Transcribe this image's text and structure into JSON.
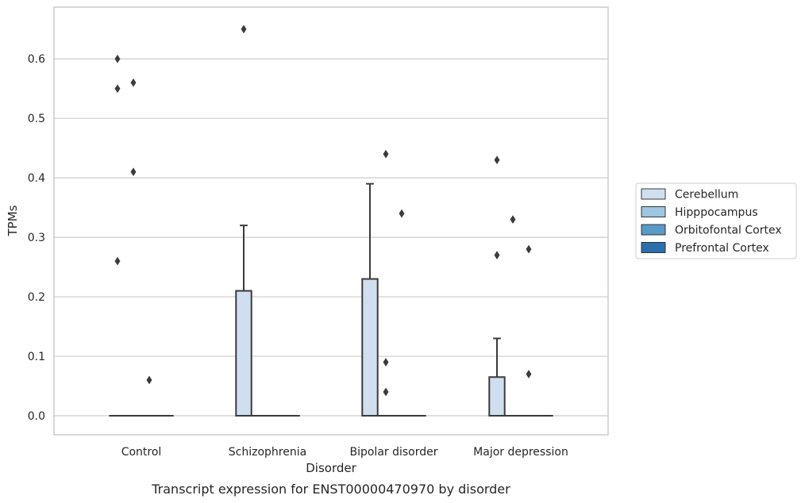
{
  "chart_data": {
    "type": "box",
    "caption": "Transcript expression for ENST00000470970 by disorder",
    "xlabel": "Disorder",
    "ylabel": "TPMs",
    "ylim": [
      -0.032,
      0.687
    ],
    "yticks": [
      0.0,
      0.1,
      0.2,
      0.3,
      0.4,
      0.5,
      0.6
    ],
    "ytick_labels": [
      "0.0",
      "0.1",
      "0.2",
      "0.3",
      "0.4",
      "0.5",
      "0.6"
    ],
    "categories": [
      "Control",
      "Schizophrenia",
      "Bipolar disorder",
      "Major depression"
    ],
    "grid": true,
    "legend_position": "right",
    "series": [
      {
        "name": "Cerebellum",
        "color": "#cfdff0",
        "boxes": [
          {
            "q1": 0,
            "median": 0,
            "q3": 0,
            "whisker_low": 0,
            "whisker_high": 0,
            "outliers": [
              0.26,
              0.55,
              0.6
            ]
          },
          {
            "q1": 0,
            "median": 0,
            "q3": 0.21,
            "whisker_low": 0,
            "whisker_high": 0.32,
            "outliers": [
              0.65
            ]
          },
          {
            "q1": 0,
            "median": 0,
            "q3": 0.23,
            "whisker_low": 0,
            "whisker_high": 0.39,
            "outliers": []
          },
          {
            "q1": 0,
            "median": 0,
            "q3": 0.065,
            "whisker_low": 0,
            "whisker_high": 0.13,
            "outliers": [
              0.27,
              0.43
            ]
          }
        ]
      },
      {
        "name": "Hipppocampus",
        "color": "#9dc6e0",
        "boxes": [
          {
            "q1": 0,
            "median": 0,
            "q3": 0,
            "whisker_low": 0,
            "whisker_high": 0,
            "outliers": [
              0.41,
              0.56
            ]
          },
          {
            "q1": 0,
            "median": 0,
            "q3": 0,
            "whisker_low": 0,
            "whisker_high": 0,
            "outliers": []
          },
          {
            "q1": 0,
            "median": 0,
            "q3": 0,
            "whisker_low": 0,
            "whisker_high": 0,
            "outliers": [
              0.04,
              0.09,
              0.44
            ]
          },
          {
            "q1": 0,
            "median": 0,
            "q3": 0,
            "whisker_low": 0,
            "whisker_high": 0,
            "outliers": [
              0.33
            ]
          }
        ]
      },
      {
        "name": "Orbitofontal Cortex",
        "color": "#5a9ac6",
        "boxes": [
          {
            "q1": 0,
            "median": 0,
            "q3": 0,
            "whisker_low": 0,
            "whisker_high": 0,
            "outliers": [
              0.06
            ]
          },
          {
            "q1": 0,
            "median": 0,
            "q3": 0,
            "whisker_low": 0,
            "whisker_high": 0,
            "outliers": []
          },
          {
            "q1": 0,
            "median": 0,
            "q3": 0,
            "whisker_low": 0,
            "whisker_high": 0,
            "outliers": [
              0.34
            ]
          },
          {
            "q1": 0,
            "median": 0,
            "q3": 0,
            "whisker_low": 0,
            "whisker_high": 0,
            "outliers": [
              0.07,
              0.28
            ]
          }
        ]
      },
      {
        "name": "Prefrontal Cortex",
        "color": "#2c6fad",
        "boxes": [
          {
            "q1": 0,
            "median": 0,
            "q3": 0,
            "whisker_low": 0,
            "whisker_high": 0,
            "outliers": []
          },
          {
            "q1": 0,
            "median": 0,
            "q3": 0,
            "whisker_low": 0,
            "whisker_high": 0,
            "outliers": []
          },
          {
            "q1": 0,
            "median": 0,
            "q3": 0,
            "whisker_low": 0,
            "whisker_high": 0,
            "outliers": []
          },
          {
            "q1": 0,
            "median": 0,
            "q3": 0,
            "whisker_low": 0,
            "whisker_high": 0,
            "outliers": []
          }
        ]
      }
    ]
  }
}
